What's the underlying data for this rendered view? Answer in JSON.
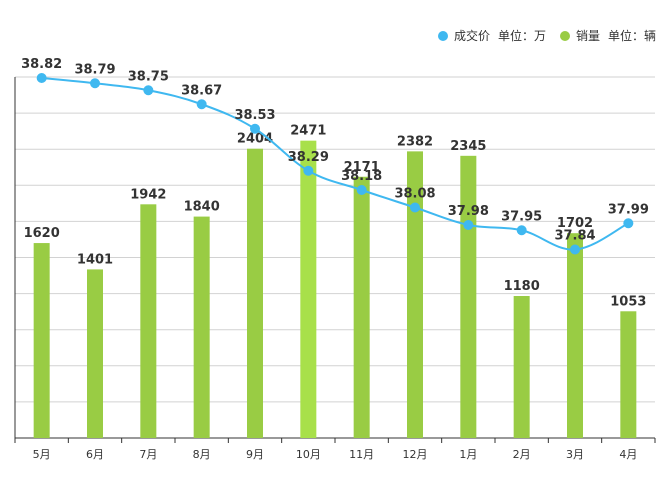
{
  "legend": {
    "price_name": "成交价",
    "price_unit": "单位：万",
    "sales_name": "销量",
    "sales_unit": "单位：辆"
  },
  "colors": {
    "line": "#3fb8f0",
    "bar": "#99cc44",
    "bar_highlight": "#a8e04a",
    "grid": "#d2d2d2",
    "axis": "#333333"
  },
  "chart_data": {
    "type": "bar+line",
    "categories": [
      "5月",
      "6月",
      "7月",
      "8月",
      "9月",
      "10月",
      "11月",
      "12月",
      "1月",
      "2月",
      "3月",
      "4月"
    ],
    "series": [
      {
        "name": "成交价",
        "type": "line",
        "unit": "单位：万",
        "values": [
          38.82,
          38.79,
          38.75,
          38.67,
          38.53,
          38.29,
          38.18,
          38.08,
          37.98,
          37.95,
          37.84,
          37.99
        ],
        "labels": [
          "38.82",
          "38.79",
          "38.75",
          "38.67",
          "38.53",
          "38.29",
          "38.18",
          "38.08",
          "37.98",
          "37.95",
          "37.84",
          "37.99"
        ]
      },
      {
        "name": "销量",
        "type": "bar",
        "unit": "单位：辆",
        "values": [
          1620,
          1401,
          1942,
          1840,
          2404,
          2471,
          2171,
          2382,
          2345,
          1180,
          1702,
          1053
        ],
        "labels": [
          "1620",
          "1401",
          "1942",
          "1840",
          "2404",
          "2471",
          "2171",
          "2382",
          "2345",
          "1180",
          "1702",
          "1053"
        ],
        "highlight_index": 5
      }
    ],
    "grid": true,
    "legend_position": "top-right"
  }
}
